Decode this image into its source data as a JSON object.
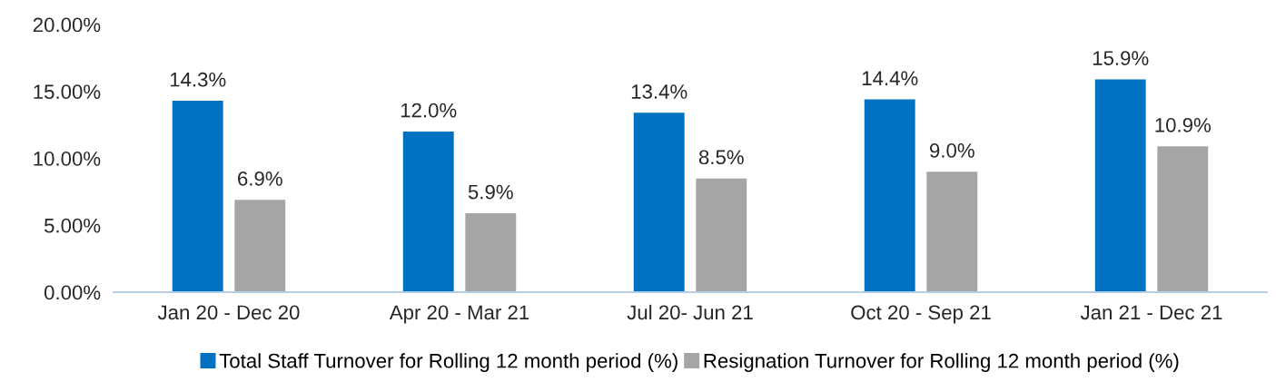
{
  "chart_data": {
    "type": "bar",
    "categories": [
      "Jan 20 - Dec 20",
      "Apr 20 - Mar 21",
      "Jul 20- Jun 21",
      "Oct 20 - Sep 21",
      "Jan 21 - Dec 21"
    ],
    "series": [
      {
        "name": "Total Staff Turnover for Rolling 12 month period (%)",
        "color": "#0070c0",
        "values": [
          14.3,
          12.0,
          13.4,
          14.4,
          15.9
        ],
        "value_labels": [
          "14.3%",
          "12.0%",
          "13.4%",
          "14.4%",
          "15.9%"
        ]
      },
      {
        "name": "Resignation Turnover for Rolling 12 month period (%)",
        "color": "#a5a5a5",
        "values": [
          6.9,
          5.9,
          8.5,
          9.0,
          10.9
        ],
        "value_labels": [
          "6.9%",
          "5.9%",
          "8.5%",
          "9.0%",
          "10.9%"
        ]
      }
    ],
    "ylim": [
      0,
      20
    ],
    "yticks": [
      {
        "value": 0,
        "label": "0.00%"
      },
      {
        "value": 5,
        "label": "5.00%"
      },
      {
        "value": 10,
        "label": "10.00%"
      },
      {
        "value": 15,
        "label": "15.00%"
      },
      {
        "value": 20,
        "label": "20.00%"
      }
    ],
    "grid": false,
    "legend": "bottom"
  }
}
